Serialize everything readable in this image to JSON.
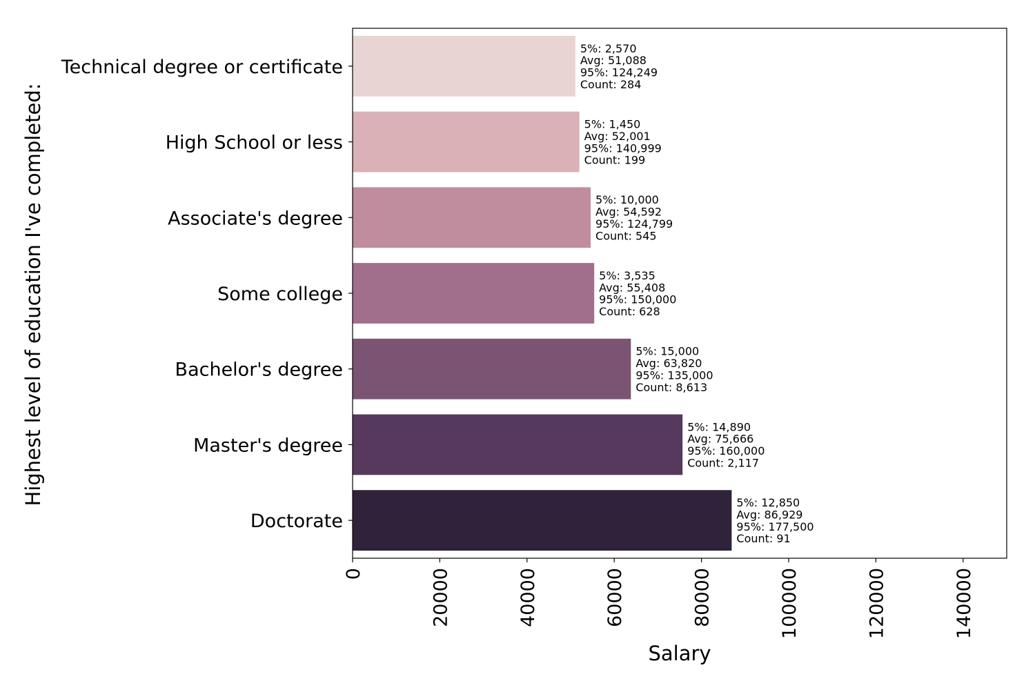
{
  "chart_data": {
    "type": "bar",
    "orientation": "horizontal",
    "xlabel": "Salary",
    "ylabel": "Highest level of education I've completed:",
    "xlim": [
      0,
      150000
    ],
    "x_ticks": [
      0,
      20000,
      40000,
      60000,
      80000,
      100000,
      120000,
      140000
    ],
    "x_tick_labels": [
      "0",
      "20000",
      "40000",
      "60000",
      "80000",
      "100000",
      "120000",
      "140000"
    ],
    "grid": false,
    "legend": "none",
    "categories": [
      "Technical degree or certificate",
      "High School or less",
      "Associate's degree",
      "Some college",
      "Bachelor's degree",
      "Master's degree",
      "Doctorate"
    ],
    "values": [
      51088,
      52001,
      54592,
      55408,
      63820,
      75666,
      86929
    ],
    "colors": [
      "#e8d4d1",
      "#d9b1b6",
      "#bf8d9d",
      "#a16e8b",
      "#7b5474",
      "#56395c",
      "#30223a"
    ],
    "annotations": [
      [
        "5%: 2,570",
        "Avg: 51,088",
        "95%: 124,249",
        "Count: 284"
      ],
      [
        "5%: 1,450",
        "Avg: 52,001",
        "95%: 140,999",
        "Count: 199"
      ],
      [
        "5%: 10,000",
        "Avg: 54,592",
        "95%: 124,799",
        "Count: 545"
      ],
      [
        "5%: 3,535",
        "Avg: 55,408",
        "95%: 150,000",
        "Count: 628"
      ],
      [
        "5%: 15,000",
        "Avg: 63,820",
        "95%: 135,000",
        "Count: 8,613"
      ],
      [
        "5%: 14,890",
        "Avg: 75,666",
        "95%: 160,000",
        "Count: 2,117"
      ],
      [
        "5%: 12,850",
        "Avg: 86,929",
        "95%: 177,500",
        "Count: 91"
      ]
    ]
  }
}
